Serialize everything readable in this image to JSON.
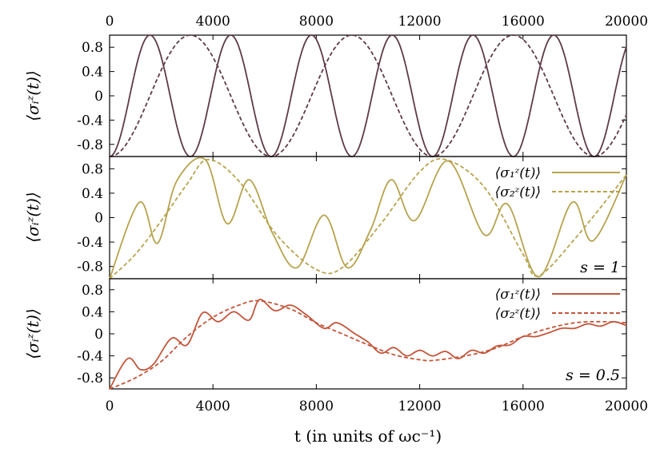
{
  "chart_data": [
    {
      "type": "line",
      "ylabel": "⟨σᵢᶻ(t)⟩",
      "xlim": [
        0,
        20000
      ],
      "ylim": [
        -1,
        1
      ],
      "x_ticks_top": [
        "0",
        "4000",
        "8000",
        "12000",
        "16000",
        "20000"
      ],
      "y_ticks": [
        "0.8",
        "0.4",
        "0",
        "-0.4",
        "-0.8"
      ],
      "series": [
        {
          "style": "solid",
          "color": "#5e3b45",
          "period": 3125,
          "phase": 0,
          "x": [
            0,
            1560,
            3125,
            4690,
            6250,
            7810,
            9375,
            10940,
            12500,
            14060,
            15625,
            17190,
            18750,
            20000
          ],
          "values": [
            -1,
            1,
            -1,
            1,
            -1,
            1,
            -1,
            1,
            -1,
            1,
            -1,
            1,
            -1,
            0.62
          ]
        },
        {
          "style": "dashed",
          "color": "#5e3b45",
          "period": 6250,
          "phase": 0,
          "x": [
            0,
            3125,
            6250,
            9375,
            12500,
            15625,
            18750,
            20000
          ],
          "values": [
            -1,
            1,
            -1,
            1,
            -1,
            1,
            -1,
            -0.38
          ]
        }
      ]
    },
    {
      "type": "line",
      "ylabel": "⟨σᵢᶻ(t)⟩",
      "xlim": [
        0,
        20000
      ],
      "ylim": [
        -1,
        1
      ],
      "y_ticks": [
        "0.8",
        "0.4",
        "0",
        "-0.4",
        "-0.8"
      ],
      "legend": [
        {
          "label": "⟨σ₁ᶻ(t)⟩",
          "style": "solid"
        },
        {
          "label": "⟨σ₂ᶻ(t)⟩",
          "style": "dashed"
        }
      ],
      "legend_position": "top-right",
      "annotation": "s = 1",
      "series": [
        {
          "name": "⟨σ₁ᶻ(t)⟩",
          "style": "solid",
          "color": "#b7a34e",
          "x": [
            0,
            1150,
            1850,
            2600,
            3700,
            4550,
            5400,
            6300,
            7250,
            8300,
            9200,
            10100,
            10900,
            11800,
            13100,
            14500,
            15400,
            16600,
            17900,
            18700,
            20000
          ],
          "values": [
            -1,
            0.25,
            -0.42,
            0.6,
            0.95,
            -0.1,
            0.62,
            -0.25,
            -0.82,
            0.04,
            -0.82,
            -0.2,
            0.62,
            -0.05,
            0.93,
            -0.28,
            0.22,
            -0.97,
            0.25,
            -0.38,
            0.7
          ]
        },
        {
          "name": "⟨σ₂ᶻ(t)⟩",
          "style": "dashed",
          "color": "#b7a34e",
          "x": [
            0,
            1000,
            2000,
            3000,
            3800,
            5000,
            6500,
            8000,
            9000,
            10500,
            12000,
            13000,
            14500,
            16000,
            16600,
            18000,
            20000
          ],
          "values": [
            -1,
            -0.6,
            -0.05,
            0.55,
            0.95,
            0.6,
            -0.3,
            -0.85,
            -0.82,
            -0.1,
            0.75,
            0.95,
            0.5,
            -0.6,
            -0.95,
            -0.35,
            0.7
          ]
        }
      ]
    },
    {
      "type": "line",
      "ylabel": "⟨σᵢᶻ(t)⟩",
      "xlim": [
        0,
        20000
      ],
      "ylim": [
        -1,
        1
      ],
      "x_ticks_bottom": [
        "0",
        "4000",
        "8000",
        "12000",
        "16000",
        "20000"
      ],
      "y_ticks": [
        "0.8",
        "0.4",
        "0",
        "-0.4",
        "-0.8"
      ],
      "xlabel": "t (in units of ωc⁻¹)",
      "legend": [
        {
          "label": "⟨σ₁ᶻ(t)⟩",
          "style": "solid"
        },
        {
          "label": "⟨σ₂ᶻ(t)⟩",
          "style": "dashed"
        }
      ],
      "legend_position": "top-right",
      "annotation": "s = 0.5",
      "series": [
        {
          "name": "⟨σ₁ᶻ(t)⟩",
          "style": "solid",
          "color": "#c4553a",
          "x": [
            0,
            700,
            1200,
            1700,
            2400,
            3000,
            3600,
            4200,
            4800,
            5400,
            5800,
            6400,
            7000,
            7600,
            8300,
            8800,
            9500,
            10000,
            10500,
            11000,
            11500,
            12000,
            12500,
            13000,
            13500,
            14000,
            14500,
            15000,
            15500,
            16000,
            16500,
            17000,
            17500,
            18000,
            18500,
            19000,
            19500,
            20000
          ],
          "values": [
            -1,
            -0.45,
            -0.65,
            -0.55,
            -0.08,
            -0.2,
            0.38,
            0.22,
            0.4,
            0.25,
            0.62,
            0.42,
            0.52,
            0.35,
            0.1,
            0.2,
            0.0,
            -0.15,
            -0.35,
            -0.25,
            -0.4,
            -0.3,
            -0.4,
            -0.32,
            -0.45,
            -0.3,
            -0.35,
            -0.22,
            -0.2,
            -0.05,
            -0.05,
            0.02,
            0.1,
            0.1,
            0.18,
            0.14,
            0.22,
            0.15
          ]
        },
        {
          "name": "⟨σ₂ᶻ(t)⟩",
          "style": "dashed",
          "color": "#c4553a",
          "x": [
            0,
            1000,
            2000,
            3000,
            4000,
            5000,
            5800,
            7000,
            8000,
            9000,
            10000,
            11000,
            12000,
            12600,
            14000,
            15000,
            16000,
            17000,
            18000,
            19000,
            20000
          ],
          "values": [
            -1,
            -0.8,
            -0.5,
            -0.05,
            0.3,
            0.52,
            0.6,
            0.45,
            0.2,
            0.0,
            -0.2,
            -0.38,
            -0.47,
            -0.48,
            -0.38,
            -0.25,
            -0.05,
            0.1,
            0.2,
            0.22,
            0.2
          ]
        }
      ]
    }
  ]
}
